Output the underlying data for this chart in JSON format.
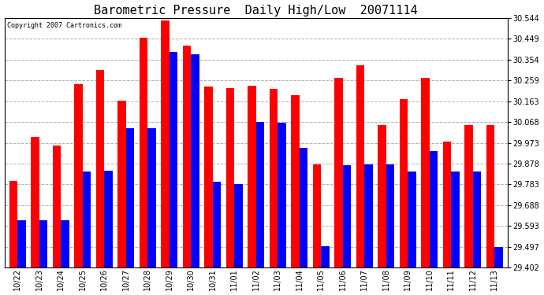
{
  "title": "Barometric Pressure  Daily High/Low  20071114",
  "copyright": "Copyright 2007 Cartronics.com",
  "dates": [
    "10/22",
    "10/23",
    "10/24",
    "10/25",
    "10/26",
    "10/27",
    "10/28",
    "10/29",
    "10/30",
    "10/31",
    "11/01",
    "11/02",
    "11/03",
    "11/04",
    "11/05",
    "11/06",
    "11/07",
    "11/08",
    "11/09",
    "11/10",
    "11/11",
    "11/12",
    "11/13"
  ],
  "highs": [
    29.8,
    30.0,
    29.96,
    30.24,
    30.305,
    30.165,
    30.455,
    30.535,
    30.42,
    30.23,
    30.225,
    30.235,
    30.22,
    30.19,
    29.875,
    30.27,
    30.33,
    30.055,
    30.175,
    30.27,
    29.98,
    30.055,
    30.055
  ],
  "lows": [
    29.62,
    29.617,
    29.617,
    29.84,
    29.845,
    30.04,
    30.04,
    30.39,
    30.38,
    29.795,
    29.785,
    30.07,
    30.065,
    29.95,
    29.5,
    29.87,
    29.875,
    29.875,
    29.84,
    29.935,
    29.84,
    29.84,
    29.497
  ],
  "ylim_min": 29.402,
  "ylim_max": 30.544,
  "yticks": [
    29.402,
    29.497,
    29.593,
    29.688,
    29.783,
    29.878,
    29.973,
    30.068,
    30.163,
    30.259,
    30.354,
    30.449,
    30.544
  ],
  "high_color": "#ff0000",
  "low_color": "#0000ff",
  "bg_color": "#ffffff",
  "grid_color": "#b0b0b0",
  "bar_width": 0.38,
  "title_fontsize": 11
}
